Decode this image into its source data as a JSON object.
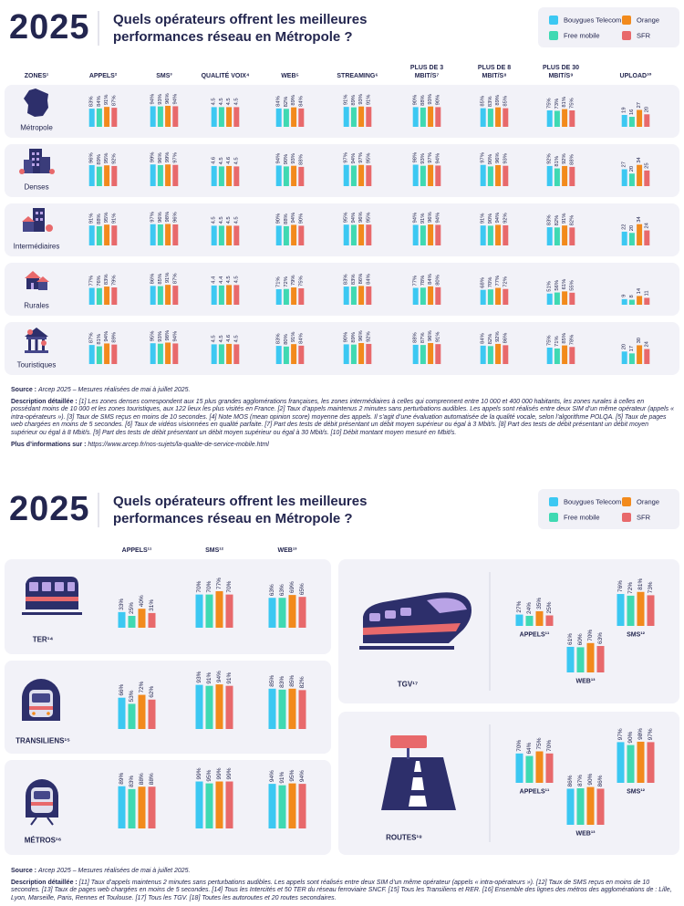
{
  "panel1": {
    "year": "2025",
    "title": "Quels opérateurs offrent les meilleures performances réseau en Métropole ?",
    "operators": [
      {
        "name": "Bouygues Telecom",
        "color": "#3cc8f2"
      },
      {
        "name": "Free mobile",
        "color": "#3fd9b2"
      },
      {
        "name": "Orange",
        "color": "#f28a1c"
      },
      {
        "name": "SFR",
        "color": "#e8696b"
      }
    ],
    "zones_header": "ZONES¹",
    "metrics": [
      {
        "label": "APPELS²",
        "ylim": [
          0,
          100
        ]
      },
      {
        "label": "SMS³",
        "ylim": [
          0,
          100
        ]
      },
      {
        "label": "QUALITÉ VOIX⁴",
        "ylim": [
          0,
          5
        ]
      },
      {
        "label": "WEB⁵",
        "ylim": [
          0,
          100
        ]
      },
      {
        "label": "STREAMING⁶",
        "ylim": [
          0,
          100
        ]
      },
      {
        "label": "PLUS DE 3 MBIT/S⁷",
        "ylim": [
          0,
          100
        ]
      },
      {
        "label": "PLUS DE 8 MBIT/S⁸",
        "ylim": [
          0,
          100
        ]
      },
      {
        "label": "PLUS DE 30 MBIT/S⁹",
        "ylim": [
          0,
          100
        ]
      },
      {
        "label": "UPLOAD¹⁰",
        "ylim": [
          0,
          35
        ]
      }
    ],
    "rows": [
      {
        "zone": "Métropole",
        "metrics": [
          {
            "values": [
              83,
              84,
              91,
              87
            ],
            "value_labels": [
              "83%",
              "84%",
              "91%",
              "87%"
            ]
          },
          {
            "values": [
              94,
              93,
              96,
              94
            ],
            "value_labels": [
              "94%",
              "93%",
              "96%",
              "94%"
            ]
          },
          {
            "values": [
              4.5,
              4.5,
              4.5,
              4.5
            ]
          },
          {
            "values": [
              84,
              82,
              89,
              84
            ],
            "value_labels": [
              "84%",
              "82%",
              "89%",
              "84%"
            ]
          },
          {
            "values": [
              91,
              89,
              93,
              91
            ],
            "value_labels": [
              "91%",
              "89%",
              "93%",
              "91%"
            ]
          },
          {
            "values": [
              90,
              88,
              93,
              90
            ],
            "value_labels": [
              "90%",
              "88%",
              "93%",
              "90%"
            ]
          },
          {
            "values": [
              85,
              83,
              89,
              85
            ],
            "value_labels": [
              "85%",
              "83%",
              "89%",
              "85%"
            ]
          },
          {
            "values": [
              75,
              73,
              81,
              75
            ],
            "value_labels": [
              "75%",
              "73%",
              "81%",
              "75%"
            ]
          },
          {
            "values": [
              19,
              16,
              27,
              20
            ]
          }
        ]
      },
      {
        "zone": "Denses",
        "metrics": [
          {
            "values": [
              96,
              89,
              95,
              92
            ],
            "value_labels": [
              "96%",
              "89%",
              "95%",
              "92%"
            ]
          },
          {
            "values": [
              99,
              96,
              99,
              97
            ],
            "value_labels": [
              "99%",
              "96%",
              "99%",
              "97%"
            ]
          },
          {
            "values": [
              4.6,
              4.5,
              4.6,
              4.5
            ]
          },
          {
            "values": [
              94,
              90,
              93,
              88
            ],
            "value_labels": [
              "94%",
              "90%",
              "93%",
              "88%"
            ]
          },
          {
            "values": [
              97,
              94,
              97,
              95
            ],
            "value_labels": [
              "97%",
              "94%",
              "97%",
              "95%"
            ]
          },
          {
            "values": [
              98,
              93,
              97,
              94
            ],
            "value_labels": [
              "98%",
              "93%",
              "97%",
              "94%"
            ]
          },
          {
            "values": [
              97,
              90,
              96,
              93
            ],
            "value_labels": [
              "97%",
              "90%",
              "96%",
              "93%"
            ]
          },
          {
            "values": [
              92,
              81,
              92,
              88
            ],
            "value_labels": [
              "92%",
              "81%",
              "92%",
              "88%"
            ]
          },
          {
            "values": [
              27,
              20,
              34,
              25
            ]
          }
        ]
      },
      {
        "zone": "Intermédiaires",
        "metrics": [
          {
            "values": [
              91,
              88,
              95,
              91
            ],
            "value_labels": [
              "91%",
              "88%",
              "95%",
              "91%"
            ]
          },
          {
            "values": [
              97,
              96,
              98,
              96
            ],
            "value_labels": [
              "97%",
              "96%",
              "98%",
              "96%"
            ]
          },
          {
            "values": [
              4.5,
              4.5,
              4.5,
              4.5
            ]
          },
          {
            "values": [
              90,
              88,
              94,
              90
            ],
            "value_labels": [
              "90%",
              "88%",
              "94%",
              "90%"
            ]
          },
          {
            "values": [
              95,
              94,
              96,
              95
            ],
            "value_labels": [
              "95%",
              "94%",
              "96%",
              "95%"
            ]
          },
          {
            "values": [
              94,
              91,
              96,
              94
            ],
            "value_labels": [
              "94%",
              "91%",
              "96%",
              "94%"
            ]
          },
          {
            "values": [
              91,
              90,
              94,
              92
            ],
            "value_labels": [
              "91%",
              "90%",
              "94%",
              "92%"
            ]
          },
          {
            "values": [
              83,
              82,
              91,
              82
            ],
            "value_labels": [
              "83%",
              "82%",
              "91%",
              "82%"
            ]
          },
          {
            "values": [
              22,
              20,
              34,
              24
            ]
          }
        ]
      },
      {
        "zone": "Rurales",
        "metrics": [
          {
            "values": [
              77,
              76,
              83,
              79
            ],
            "value_labels": [
              "77%",
              "76%",
              "83%",
              "79%"
            ]
          },
          {
            "values": [
              86,
              85,
              91,
              87
            ],
            "value_labels": [
              "86%",
              "85%",
              "91%",
              "87%"
            ]
          },
          {
            "values": [
              4.4,
              4.4,
              4.5,
              4.5
            ]
          },
          {
            "values": [
              71,
              72,
              79,
              75
            ],
            "value_labels": [
              "71%",
              "72%",
              "79%",
              "75%"
            ]
          },
          {
            "values": [
              83,
              83,
              86,
              84
            ],
            "value_labels": [
              "83%",
              "83%",
              "86%",
              "84%"
            ]
          },
          {
            "values": [
              77,
              78,
              84,
              80
            ],
            "value_labels": [
              "77%",
              "78%",
              "84%",
              "80%"
            ]
          },
          {
            "values": [
              68,
              70,
              77,
              72
            ],
            "value_labels": [
              "68%",
              "70%",
              "77%",
              "72%"
            ]
          },
          {
            "values": [
              51,
              56,
              61,
              55
            ],
            "value_labels": [
              "51%",
              "56%",
              "61%",
              "55%"
            ]
          },
          {
            "values": [
              9,
              8,
              14,
              11
            ]
          }
        ]
      },
      {
        "zone": "Touristiques",
        "metrics": [
          {
            "values": [
              87,
              81,
              94,
              89
            ],
            "value_labels": [
              "87%",
              "81%",
              "94%",
              "89%"
            ]
          },
          {
            "values": [
              95,
              93,
              98,
              94
            ],
            "value_labels": [
              "95%",
              "93%",
              "98%",
              "94%"
            ]
          },
          {
            "values": [
              4.5,
              4.5,
              4.6,
              4.5
            ]
          },
          {
            "values": [
              83,
              80,
              91,
              84
            ],
            "value_labels": [
              "83%",
              "80%",
              "91%",
              "84%"
            ]
          },
          {
            "values": [
              90,
              89,
              96,
              92
            ],
            "value_labels": [
              "90%",
              "89%",
              "96%",
              "92%"
            ]
          },
          {
            "values": [
              88,
              87,
              96,
              91
            ],
            "value_labels": [
              "88%",
              "87%",
              "96%",
              "91%"
            ]
          },
          {
            "values": [
              84,
              82,
              92,
              86
            ],
            "value_labels": [
              "84%",
              "82%",
              "92%",
              "86%"
            ]
          },
          {
            "values": [
              75,
              71,
              85,
              78
            ],
            "value_labels": [
              "75%",
              "71%",
              "85%",
              "78%"
            ]
          },
          {
            "values": [
              20,
              17,
              30,
              24
            ]
          }
        ]
      }
    ],
    "source": {
      "label": "Source :",
      "text": "Arcep 2025 – Mesures réalisées de mai à juillet 2025."
    },
    "description": {
      "label": "Description détaillée :",
      "text": "[1] Les zones denses correspondent aux 15 plus grandes agglomérations françaises, les zones intermédiaires à celles qui comprennent entre 10 000 et 400 000 habitants, les zones rurales à celles en possédant moins de 10 000 et les zones touristiques, aux 122 lieux les plus visités en France. [2] Taux d’appels maintenus 2 minutes sans perturbations audibles. Les appels sont réalisés entre deux SIM d’un même opérateur (appels « intra-opérateurs »). [3] Taux de SMS reçus en moins de 10 secondes. [4] Note MOS (mean opinion score) moyenne des appels. Il s’agit d’une évaluation automatisée de la qualité vocale, selon l’algorithme POLQA. [5] Taux de pages web chargées en moins de 5 secondes. [6] Taux de vidéos visionnées en qualité parfaite. [7] Part des tests de débit présentant un débit moyen supérieur ou égal à 3 Mbit/s. [8] Part des tests de débit présentant un débit moyen supérieur ou égal à 8 Mbit/s. [9] Part des tests de débit présentant un débit moyen supérieur ou égal à 30 Mbit/s. [10] Débit montant moyen mesuré en Mbit/s."
    },
    "more": {
      "label": "Plus d’informations sur :",
      "text": "https://www.arcep.fr/nos-sujets/la-qualite-de-service-mobile.html"
    }
  },
  "panel2": {
    "year": "2025",
    "title": "Quels opérateurs offrent les meilleures performances réseau en Métropole ?",
    "ylim": [
      0,
      100
    ],
    "metrics": [
      {
        "label": "APPELS¹¹"
      },
      {
        "label": "SMS¹²"
      },
      {
        "label": "WEB¹³"
      }
    ],
    "modes": [
      {
        "name": "TER¹⁴",
        "metrics": [
          {
            "values": [
              33,
              25,
              40,
              31
            ],
            "value_labels": [
              "33%",
              "25%",
              "40%",
              "31%"
            ]
          },
          {
            "values": [
              70,
              70,
              77,
              70
            ],
            "value_labels": [
              "70%",
              "70%",
              "77%",
              "70%"
            ]
          },
          {
            "values": [
              63,
              63,
              69,
              65
            ],
            "value_labels": [
              "63%",
              "63%",
              "69%",
              "65%"
            ]
          }
        ]
      },
      {
        "name": "TRANSILIENS¹⁵",
        "metrics": [
          {
            "values": [
              66,
              53,
              72,
              62
            ],
            "value_labels": [
              "66%",
              "53%",
              "72%",
              "62%"
            ]
          },
          {
            "values": [
              93,
              91,
              94,
              91
            ],
            "value_labels": [
              "93%",
              "91%",
              "94%",
              "91%"
            ]
          },
          {
            "values": [
              85,
              83,
              85,
              82
            ],
            "value_labels": [
              "85%",
              "83%",
              "85%",
              "82%"
            ]
          }
        ]
      },
      {
        "name": "MÉTROS¹⁶",
        "metrics": [
          {
            "values": [
              89,
              83,
              88,
              88
            ],
            "value_labels": [
              "89%",
              "83%",
              "88%",
              "88%"
            ]
          },
          {
            "values": [
              99,
              95,
              99,
              99
            ],
            "value_labels": [
              "99%",
              "95%",
              "99%",
              "99%"
            ]
          },
          {
            "values": [
              94,
              91,
              95,
              94
            ],
            "value_labels": [
              "94%",
              "91%",
              "95%",
              "94%"
            ]
          }
        ]
      },
      {
        "name": "TGV¹⁷",
        "metrics": [
          {
            "values": [
              27,
              24,
              35,
              25
            ],
            "value_labels": [
              "27%",
              "24%",
              "35%",
              "25%"
            ]
          },
          {
            "values": [
              76,
              72,
              81,
              73
            ],
            "value_labels": [
              "76%",
              "72%",
              "81%",
              "73%"
            ]
          },
          {
            "values": [
              61,
              60,
              70,
              63
            ],
            "value_labels": [
              "61%",
              "60%",
              "70%",
              "63%"
            ]
          }
        ]
      },
      {
        "name": "ROUTES¹⁸",
        "metrics": [
          {
            "values": [
              70,
              64,
              75,
              70
            ],
            "value_labels": [
              "70%",
              "64%",
              "75%",
              "70%"
            ]
          },
          {
            "values": [
              97,
              90,
              98,
              97
            ],
            "value_labels": [
              "97%",
              "90%",
              "98%",
              "97%"
            ]
          },
          {
            "values": [
              86,
              87,
              90,
              86
            ],
            "value_labels": [
              "86%",
              "87%",
              "90%",
              "86%"
            ]
          }
        ]
      }
    ],
    "source": {
      "label": "Source :",
      "text": "Arcep 2025 – Mesures réalisées de mai à juillet 2025."
    },
    "description": {
      "label": "Description détaillée :",
      "text": "[11] Taux d’appels maintenus 2 minutes sans perturbations audibles. Les appels sont réalisés entre deux SIM d’un même opérateur (appels « intra-opérateurs »). [12] Taux de SMS reçus en moins de 10 secondes. [13] Taux de pages web chargées en moins de 5 secondes. [14] Tous les Intercités et 50 TER du réseau ferroviaire SNCF. [15] Tous les Transiliens et RER. [16] Ensemble des lignes des métros des agglomérations de : Lille, Lyon, Marseille, Paris, Rennes et Toulouse. [17] Tous les TGV. [18] Toutes les autoroutes et 20 routes secondaires."
    }
  }
}
